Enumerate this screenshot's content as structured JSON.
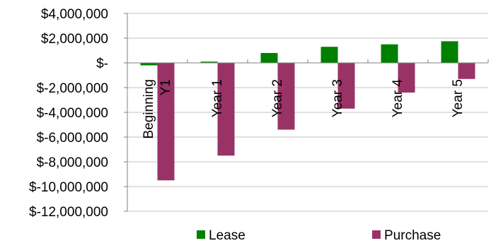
{
  "chart_data": {
    "type": "bar",
    "title": "",
    "xlabel": "",
    "ylabel": "",
    "categories": [
      "Beginning Y1",
      "Year 1",
      "Year 2",
      "Year 3",
      "Year 4",
      "Year 5"
    ],
    "category_lines": [
      [
        "Beginning",
        "Y1"
      ],
      [
        "Year 1"
      ],
      [
        "Year 2"
      ],
      [
        "Year 3"
      ],
      [
        "Year 4"
      ],
      [
        "Year 5"
      ]
    ],
    "series": [
      {
        "name": "Lease",
        "color": "#008000",
        "values": [
          -200000,
          100000,
          800000,
          1300000,
          1500000,
          1750000
        ]
      },
      {
        "name": "Purchase",
        "color": "#993366",
        "values": [
          -9500000,
          -7500000,
          -5400000,
          -3700000,
          -2400000,
          -1300000
        ]
      }
    ],
    "ylim": [
      -12000000,
      4000000
    ],
    "yticks": [
      4000000,
      2000000,
      0,
      -2000000,
      -4000000,
      -6000000,
      -8000000,
      -10000000,
      -12000000
    ],
    "ytick_labels": [
      "$4,000,000",
      "$2,000,000",
      "$-",
      "$-2,000,000",
      "$-4,000,000",
      "$-6,000,000",
      "$-8,000,000",
      "$-10,000,000",
      "$-12,000,000"
    ],
    "grid": true,
    "gridline_color": "#c0c0c0",
    "axis_color": "#808080",
    "legend_position": "bottom"
  }
}
